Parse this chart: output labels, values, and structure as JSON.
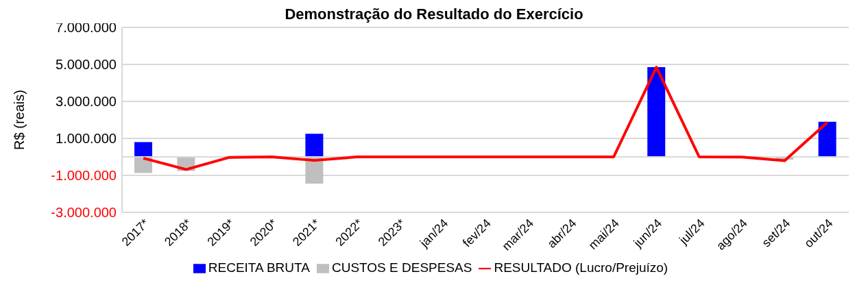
{
  "chart_data": {
    "type": "bar",
    "title": "Demonstração do Resultado do Exercício",
    "ylabel": "R$ (reais)",
    "categories": [
      "2017*",
      "2018*",
      "2019*",
      "2020*",
      "2021*",
      "2022*",
      "2023*",
      "jan/24",
      "fev/24",
      "mar/24",
      "abr/24",
      "mai/24",
      "jun/24",
      "jul/24",
      "ago/24",
      "set/24",
      "out/24"
    ],
    "series": [
      {
        "name": "RECEITA BRUTA",
        "color": "#0000ff",
        "values": [
          800000,
          null,
          null,
          null,
          1250000,
          null,
          null,
          null,
          null,
          null,
          null,
          null,
          4850000,
          null,
          null,
          null,
          1900000
        ]
      },
      {
        "name": "CUSTOS E DESPESAS",
        "color": "#bfbfbf",
        "values": [
          -870000,
          -760000,
          -30000,
          null,
          -1440000,
          null,
          null,
          null,
          null,
          null,
          null,
          null,
          null,
          null,
          null,
          -150000,
          null
        ]
      },
      {
        "name": "RESULTADO (Lucro/Prejuízo)",
        "type": "line",
        "color": "#ff0000",
        "values": [
          -70000,
          -680000,
          -30000,
          0,
          -190000,
          0,
          0,
          0,
          0,
          0,
          0,
          0,
          4850000,
          0,
          -10000,
          -200000,
          1870000
        ]
      }
    ],
    "stacked": true,
    "ylim": [
      -3000000,
      7000000
    ],
    "yticks": [
      {
        "value": -3000000,
        "label": "-3.000.000"
      },
      {
        "value": -1000000,
        "label": "-1.000.000"
      },
      {
        "value": 1000000,
        "label": "1.000.000"
      },
      {
        "value": 3000000,
        "label": "3.000.000"
      },
      {
        "value": 5000000,
        "label": "5.000.000"
      },
      {
        "value": 7000000,
        "label": "7.000.000"
      }
    ],
    "grid": "y",
    "legend": "bottom",
    "marker": "none",
    "line_style": "solid"
  }
}
